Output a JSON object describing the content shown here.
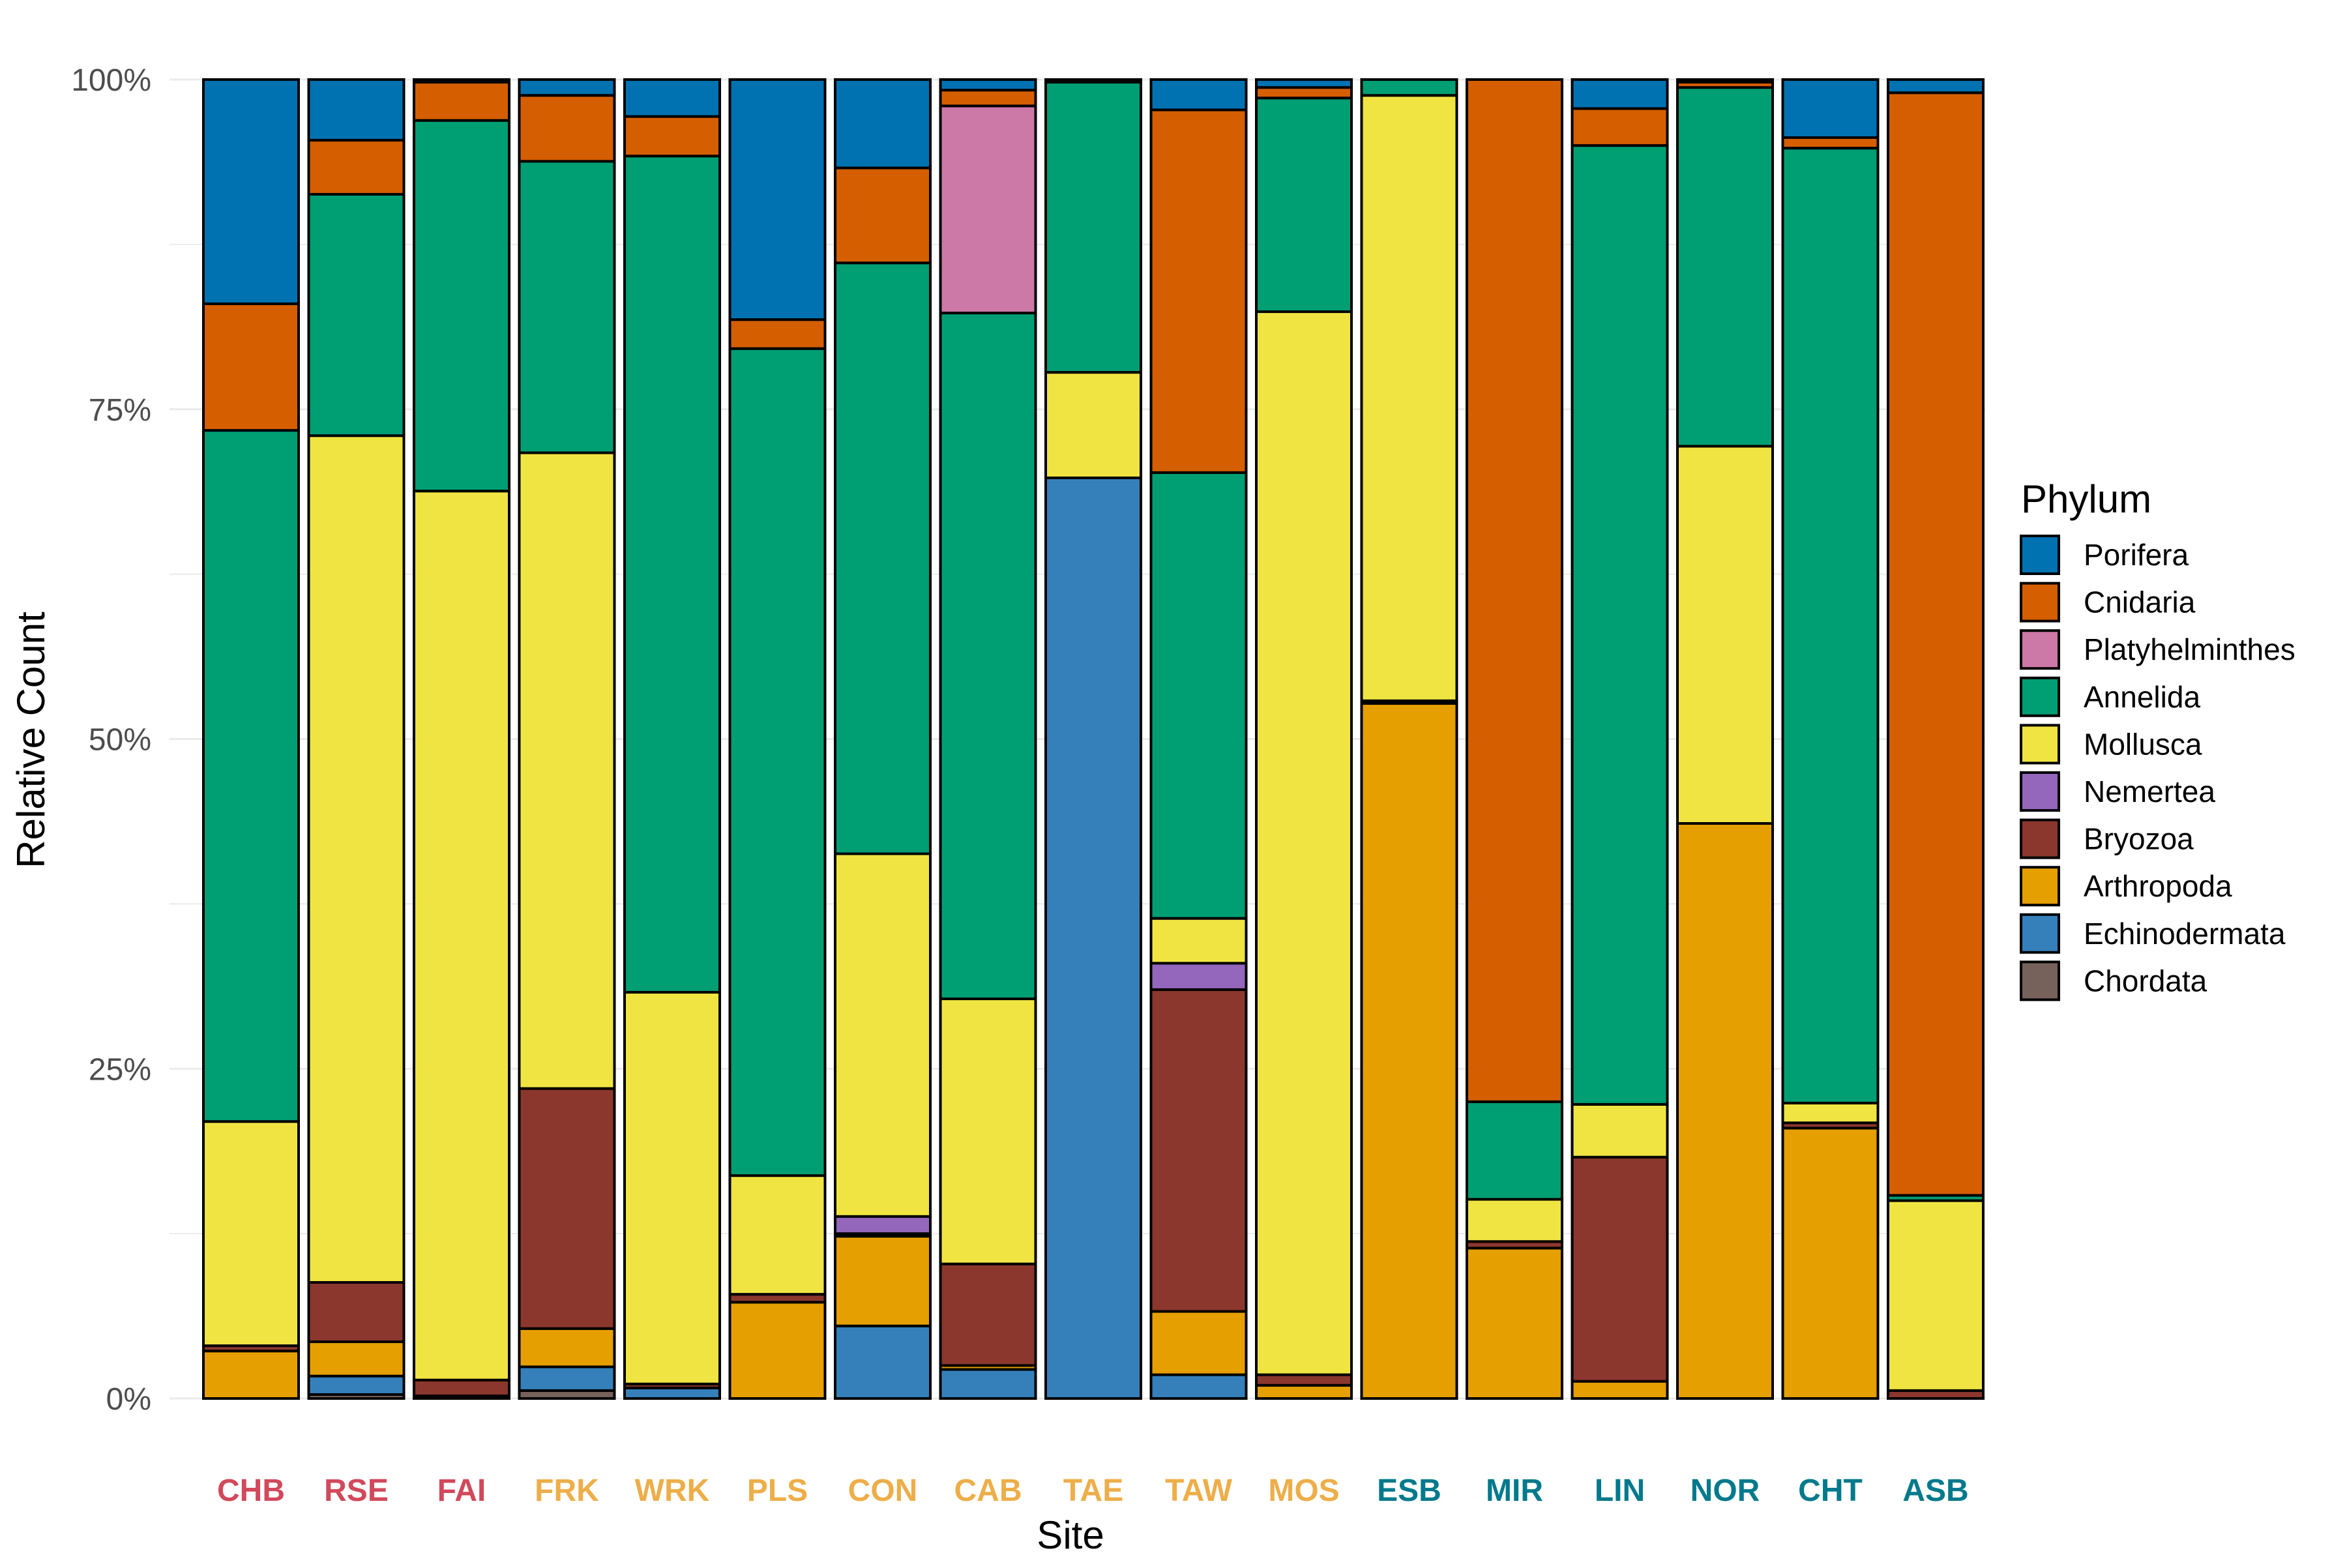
{
  "chart_data": {
    "type": "bar",
    "stacked": true,
    "xlabel": "Site",
    "ylabel": "Relative Count",
    "ylim": [
      0,
      1
    ],
    "y_ticks": [
      {
        "value": 0,
        "label": "0%"
      },
      {
        "value": 0.25,
        "label": "25%"
      },
      {
        "value": 0.5,
        "label": "50%"
      },
      {
        "value": 0.75,
        "label": "75%"
      },
      {
        "value": 1,
        "label": "100%"
      }
    ],
    "grid": true,
    "legend_title": "Phylum",
    "legend_position": "right",
    "categories": [
      "CHB",
      "RSE",
      "FAI",
      "FRK",
      "WRK",
      "PLS",
      "CON",
      "CAB",
      "TAE",
      "TAW",
      "MOS",
      "ESB",
      "MIR",
      "LIN",
      "NOR",
      "CHT",
      "ASB"
    ],
    "category_colors": [
      "#d1495b",
      "#d1495b",
      "#d1495b",
      "#edae49",
      "#edae49",
      "#edae49",
      "#edae49",
      "#edae49",
      "#edae49",
      "#edae49",
      "#edae49",
      "#00798c",
      "#00798c",
      "#00798c",
      "#00798c",
      "#00798c",
      "#00798c"
    ],
    "series": [
      {
        "name": "Chordata",
        "color": "#76615b",
        "values": [
          0.0,
          0.003,
          0.0,
          0.006,
          0.0,
          0.0,
          0.0,
          0.0,
          0.0,
          0.0,
          0.0,
          0.0,
          0.0,
          0.0,
          0.0,
          0.0,
          0.0
        ]
      },
      {
        "name": "Echinodermata",
        "color": "#3580bb",
        "values": [
          0.0,
          0.014,
          0.002,
          0.018,
          0.008,
          0.0,
          0.055,
          0.022,
          0.698,
          0.018,
          0.0,
          0.0,
          0.0,
          0.0,
          0.0,
          0.0,
          0.0
        ]
      },
      {
        "name": "Arthropoda",
        "color": "#e69f00",
        "values": [
          0.036,
          0.026,
          0.0,
          0.029,
          0.0,
          0.073,
          0.068,
          0.003,
          0.0,
          0.048,
          0.01,
          0.527,
          0.114,
          0.013,
          0.436,
          0.205,
          0.0
        ]
      },
      {
        "name": "Bryozoa",
        "color": "#8b372d",
        "values": [
          0.004,
          0.045,
          0.012,
          0.182,
          0.003,
          0.006,
          0.002,
          0.077,
          0.0,
          0.244,
          0.008,
          0.002,
          0.005,
          0.17,
          0.0,
          0.004,
          0.006
        ]
      },
      {
        "name": "Nemertea",
        "color": "#9467bd",
        "values": [
          0.0,
          0.0,
          0.0,
          0.0,
          0.0,
          0.0,
          0.013,
          0.0,
          0.0,
          0.02,
          0.0,
          0.0,
          0.0,
          0.0,
          0.0,
          0.0,
          0.0
        ]
      },
      {
        "name": "Mollusca",
        "color": "#f0e442",
        "values": [
          0.17,
          0.642,
          0.674,
          0.482,
          0.297,
          0.09,
          0.275,
          0.201,
          0.08,
          0.034,
          0.806,
          0.459,
          0.032,
          0.04,
          0.286,
          0.015,
          0.144
        ]
      },
      {
        "name": "Annelida",
        "color": "#009e73",
        "values": [
          0.524,
          0.183,
          0.281,
          0.221,
          0.634,
          0.627,
          0.448,
          0.52,
          0.22,
          0.338,
          0.162,
          0.012,
          0.074,
          0.727,
          0.272,
          0.724,
          0.004
        ]
      },
      {
        "name": "Platyhelminthes",
        "color": "#cc79a7",
        "values": [
          0.0,
          0.0,
          0.0,
          0.0,
          0.0,
          0.0,
          0.0,
          0.157,
          0.0,
          0.0,
          0.0,
          0.0,
          0.0,
          0.0,
          0.0,
          0.0,
          0.0
        ]
      },
      {
        "name": "Cnidaria",
        "color": "#d55e00",
        "values": [
          0.096,
          0.041,
          0.029,
          0.05,
          0.03,
          0.022,
          0.072,
          0.012,
          0.0,
          0.275,
          0.008,
          0.0,
          0.775,
          0.028,
          0.004,
          0.008,
          0.836
        ]
      },
      {
        "name": "Porifera",
        "color": "#0072b2",
        "values": [
          0.17,
          0.046,
          0.002,
          0.012,
          0.028,
          0.182,
          0.067,
          0.008,
          0.002,
          0.023,
          0.006,
          0.0,
          0.0,
          0.022,
          0.002,
          0.044,
          0.01
        ]
      }
    ],
    "legend_order": [
      "Porifera",
      "Cnidaria",
      "Platyhelminthes",
      "Annelida",
      "Mollusca",
      "Nemertea",
      "Bryozoa",
      "Arthropoda",
      "Echinodermata",
      "Chordata"
    ]
  }
}
